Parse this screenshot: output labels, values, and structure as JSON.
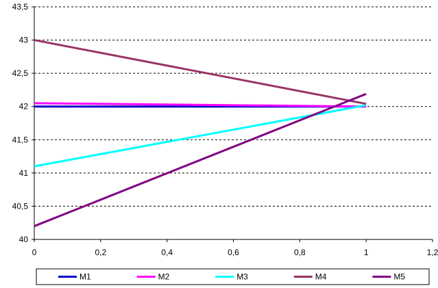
{
  "chart_data": {
    "type": "line",
    "xlim": [
      0,
      1.2
    ],
    "ylim": [
      40,
      43.5
    ],
    "x_ticks": [
      "0",
      "0,2",
      "0,4",
      "0,6",
      "0,8",
      "1",
      "1,2"
    ],
    "y_ticks": [
      "40",
      "40,5",
      "41",
      "41,5",
      "42",
      "42,5",
      "43",
      "43,5"
    ],
    "grid": "horizontal-dashed",
    "legend": "bottom",
    "series": [
      {
        "name": "M1",
        "color": "#0000cc",
        "x": [
          0,
          1
        ],
        "y": [
          42.0,
          42.0
        ]
      },
      {
        "name": "M2",
        "color": "#ff00ff",
        "x": [
          0,
          1
        ],
        "y": [
          42.05,
          42.0
        ]
      },
      {
        "name": "M3",
        "color": "#00ffff",
        "x": [
          0,
          1
        ],
        "y": [
          41.1,
          42.02
        ]
      },
      {
        "name": "M4",
        "color": "#993366",
        "x": [
          0,
          1
        ],
        "y": [
          43.0,
          42.04
        ]
      },
      {
        "name": "M5",
        "color": "#800080",
        "x": [
          0,
          1
        ],
        "y": [
          40.2,
          42.19
        ]
      }
    ]
  }
}
